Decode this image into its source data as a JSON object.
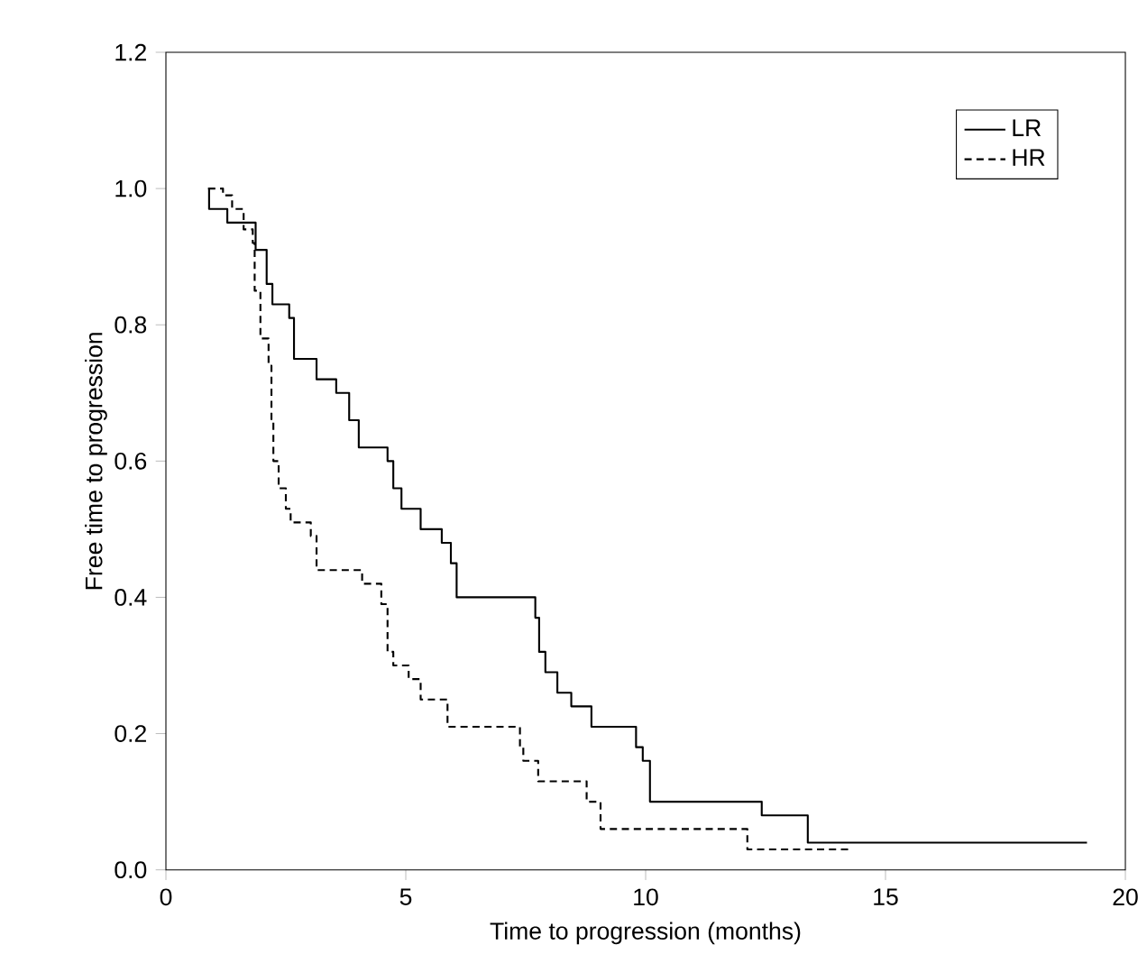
{
  "chart_data": {
    "type": "step",
    "xlabel": "Time to progression (months)",
    "ylabel": "Free time to progression",
    "xlim": [
      0,
      20
    ],
    "xticks": [
      0,
      5,
      10,
      15,
      20
    ],
    "ylim": [
      0,
      1.2
    ],
    "yticks": [
      {
        "value": 0,
        "label": "0.0"
      },
      {
        "value": 0.2,
        "label": "0.2"
      },
      {
        "value": 0.4,
        "label": "0.4"
      },
      {
        "value": 0.6,
        "label": "0.6"
      },
      {
        "value": 0.8,
        "label": "0.8"
      },
      {
        "value": 1.0,
        "label": "1.0"
      },
      {
        "value": 1.2,
        "label": "1.2"
      }
    ],
    "grid": false,
    "legend": "top right",
    "marker": "none",
    "series": [
      {
        "name": "LR",
        "color": "#000000",
        "line_style": "solid",
        "x": [
          0.88,
          0.9,
          1.28,
          1.87,
          2.1,
          2.22,
          2.57,
          2.67,
          3.14,
          3.55,
          3.82,
          4.02,
          4.62,
          4.74,
          4.91,
          5.31,
          5.75,
          5.94,
          6.06,
          7.7,
          7.78,
          7.91,
          8.16,
          8.45,
          8.87,
          9.8,
          9.94,
          10.09,
          12.42,
          13.38,
          19.2
        ],
        "values": [
          1.0,
          0.97,
          0.95,
          0.91,
          0.86,
          0.83,
          0.81,
          0.75,
          0.72,
          0.7,
          0.66,
          0.62,
          0.6,
          0.56,
          0.53,
          0.5,
          0.48,
          0.45,
          0.4,
          0.37,
          0.32,
          0.29,
          0.26,
          0.24,
          0.21,
          0.18,
          0.16,
          0.1,
          0.08,
          0.04,
          0.04
        ]
      },
      {
        "name": "HR",
        "color": "#000000",
        "line_style": "dashed",
        "x": [
          0.88,
          1.19,
          1.38,
          1.62,
          1.81,
          1.85,
          1.97,
          2.14,
          2.2,
          2.24,
          2.35,
          2.5,
          2.6,
          3.02,
          3.14,
          4.09,
          4.49,
          4.62,
          4.74,
          5.06,
          5.31,
          5.87,
          7.38,
          7.45,
          7.76,
          8.77,
          9.06,
          12.12,
          14.3
        ],
        "values": [
          1.0,
          0.99,
          0.97,
          0.94,
          0.92,
          0.85,
          0.78,
          0.74,
          0.66,
          0.6,
          0.56,
          0.53,
          0.51,
          0.49,
          0.44,
          0.42,
          0.39,
          0.32,
          0.3,
          0.28,
          0.25,
          0.21,
          0.18,
          0.16,
          0.13,
          0.1,
          0.06,
          0.03,
          0.03
        ]
      }
    ]
  }
}
